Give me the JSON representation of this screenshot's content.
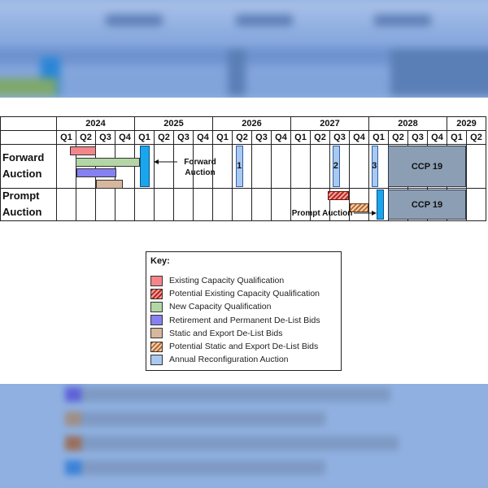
{
  "colors": {
    "existing_capacity": "#f4858a",
    "potential_existing_capacity": "#b8261e",
    "new_capacity": "#b4d6a6",
    "retirement_permanent": "#8680f2",
    "static_export": "#d7b79e",
    "potential_static_export": "#b66a2c",
    "annual_reconfig": "#a9c9f0",
    "auction": "#19a6ec",
    "ccp": "#8c9eb4"
  },
  "chart_data": {
    "type": "gantt",
    "years": [
      {
        "label": "2024",
        "quarters": 4
      },
      {
        "label": "2025",
        "quarters": 4
      },
      {
        "label": "2026",
        "quarters": 4
      },
      {
        "label": "2027",
        "quarters": 4
      },
      {
        "label": "2028",
        "quarters": 4
      },
      {
        "label": "2029",
        "quarters": 2
      }
    ],
    "quarter_labels": [
      "Q1",
      "Q2",
      "Q3",
      "Q4",
      "Q1",
      "Q2",
      "Q3",
      "Q4",
      "Q1",
      "Q2",
      "Q3",
      "Q4",
      "Q1",
      "Q2",
      "Q3",
      "Q4",
      "Q1",
      "Q2",
      "Q3",
      "Q4",
      "Q1",
      "Q2"
    ],
    "rows": [
      "Forward\nAuction",
      "Prompt\nAuction"
    ],
    "row_labels": [
      [
        "Forward",
        "Auction"
      ],
      [
        "Prompt",
        "Auction"
      ]
    ],
    "tasks": [
      {
        "row": 0,
        "category": "existing_capacity",
        "start": 0.7,
        "end": 2.05,
        "lane": 0
      },
      {
        "row": 0,
        "category": "new_capacity",
        "start": 1.0,
        "end": 4.3,
        "lane": 1
      },
      {
        "row": 0,
        "category": "retirement_permanent",
        "start": 1.05,
        "end": 3.1,
        "lane": 2
      },
      {
        "row": 0,
        "category": "static_export",
        "start": 2.05,
        "end": 3.4,
        "lane": 3
      },
      {
        "row": 0,
        "category": "auction",
        "start": 4.3,
        "end": 4.8,
        "lane": "full"
      },
      {
        "row": 0,
        "category": "annual_reconfig",
        "start": 9.2,
        "end": 9.6,
        "lane": "full",
        "label": "1"
      },
      {
        "row": 0,
        "category": "annual_reconfig",
        "start": 14.15,
        "end": 14.55,
        "lane": "full",
        "label": "2"
      },
      {
        "row": 0,
        "category": "annual_reconfig",
        "start": 16.15,
        "end": 16.5,
        "lane": "full",
        "label": "3"
      },
      {
        "row": 0,
        "category": "ccp",
        "start": 17.0,
        "end": 21.0,
        "lane": "full",
        "label": "CCP 19"
      },
      {
        "row": 1,
        "category": "potential_existing_capacity",
        "start": 13.9,
        "end": 15.0,
        "lane": 0
      },
      {
        "row": 1,
        "category": "potential_static_export",
        "start": 15.05,
        "end": 16.0,
        "lane": 1
      },
      {
        "row": 1,
        "category": "auction",
        "start": 16.4,
        "end": 16.8,
        "lane": "full"
      },
      {
        "row": 1,
        "category": "ccp",
        "start": 17.0,
        "end": 21.0,
        "lane": "full",
        "label": "CCP 19"
      }
    ],
    "annotations": [
      {
        "text_lines": [
          "Forward",
          "Auction"
        ],
        "row": 0
      },
      {
        "text_lines": [
          "Prompt Auction"
        ],
        "row": 1
      }
    ],
    "legend": {
      "title": "Key:",
      "placement": "bottom-center",
      "entries": [
        {
          "category": "existing_capacity",
          "label": "Existing Capacity Qualification"
        },
        {
          "category": "potential_existing_capacity",
          "label": "Potential Existing Capacity Qualification"
        },
        {
          "category": "new_capacity",
          "label": "New Capacity Qualification"
        },
        {
          "category": "retirement_permanent",
          "label": "Retirement and Permanent De-List Bids"
        },
        {
          "category": "static_export",
          "label": "Static and Export De-List Bids"
        },
        {
          "category": "potential_static_export",
          "label": "Potential Static and Export De-List Bids"
        },
        {
          "category": "annual_reconfig",
          "label": "Annual Reconfiguration Auction"
        }
      ]
    }
  }
}
